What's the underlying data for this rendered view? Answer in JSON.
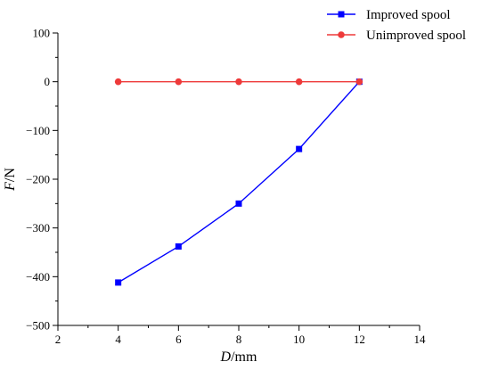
{
  "chart_data": {
    "type": "line",
    "title": "",
    "xlabel": {
      "italic": "D",
      "unit": "/mm"
    },
    "ylabel": {
      "italic": "F",
      "unit": "/N"
    },
    "xlim": [
      2,
      14
    ],
    "ylim": [
      -500,
      100
    ],
    "xticks": [
      2,
      4,
      6,
      8,
      10,
      12,
      14
    ],
    "yticks": [
      100,
      0,
      -100,
      -200,
      -300,
      -400,
      -500
    ],
    "xtick_labels": [
      "2",
      "4",
      "6",
      "8",
      "10",
      "12",
      "14"
    ],
    "ytick_labels": [
      "100",
      "0",
      "−100",
      "−200",
      "−300",
      "−400",
      "−500"
    ],
    "grid": false,
    "legend_position": "top-right",
    "series": [
      {
        "name": "Improved spool",
        "color": "#0000ff",
        "marker": "square",
        "x": [
          4,
          6,
          8,
          10,
          12
        ],
        "y": [
          -412,
          -338,
          -250,
          -138,
          0
        ]
      },
      {
        "name": "Unimproved spool",
        "color": "#ee3a3a",
        "marker": "circle",
        "x": [
          4,
          6,
          8,
          10,
          12
        ],
        "y": [
          0,
          0,
          0,
          0,
          0
        ]
      }
    ]
  }
}
